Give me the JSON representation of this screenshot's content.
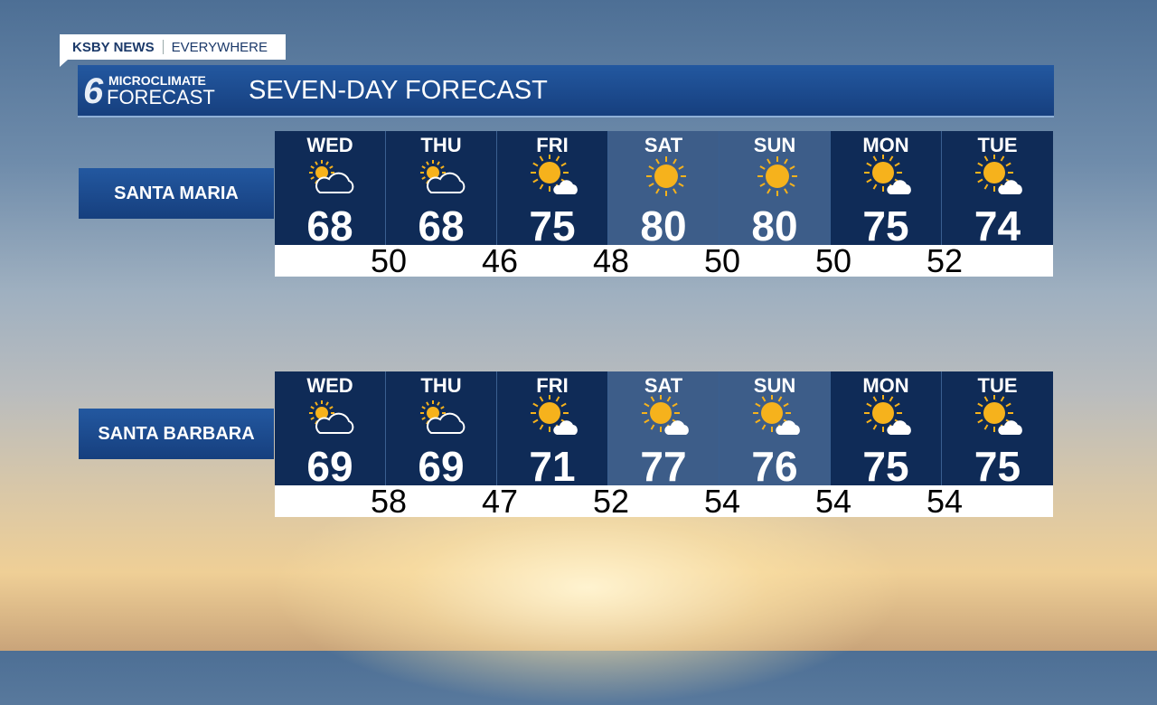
{
  "tag": {
    "brand": "KSBY NEWS",
    "slogan": "EVERYWHERE"
  },
  "banner": {
    "logo_text": "MICROCLIMATE FORECAST",
    "logo_top": "MICROCLIMATE",
    "logo_bottom": "FORECAST",
    "logo_num": "6",
    "title": "SEVEN-DAY FORECAST"
  },
  "colors": {
    "weekday": "#0f2b57",
    "weekend": "#3d5d89",
    "sun": "#f6b21c"
  },
  "locations": [
    {
      "name": "SANTA MARIA",
      "days": [
        {
          "day": "WED",
          "icon": "partly-cloudy-icon",
          "hi": "68",
          "weekend": false
        },
        {
          "day": "THU",
          "icon": "partly-cloudy-icon",
          "hi": "68",
          "weekend": false
        },
        {
          "day": "FRI",
          "icon": "mostly-sunny-icon",
          "hi": "75",
          "weekend": false
        },
        {
          "day": "SAT",
          "icon": "sunny-icon",
          "hi": "80",
          "weekend": true
        },
        {
          "day": "SUN",
          "icon": "sunny-icon",
          "hi": "80",
          "weekend": true
        },
        {
          "day": "MON",
          "icon": "mostly-sunny-icon",
          "hi": "75",
          "weekend": false
        },
        {
          "day": "TUE",
          "icon": "mostly-sunny-icon",
          "hi": "74",
          "weekend": false
        }
      ],
      "lows": [
        "50",
        "46",
        "48",
        "50",
        "50",
        "52"
      ]
    },
    {
      "name": "SANTA BARBARA",
      "days": [
        {
          "day": "WED",
          "icon": "partly-cloudy-icon",
          "hi": "69",
          "weekend": false
        },
        {
          "day": "THU",
          "icon": "partly-cloudy-icon",
          "hi": "69",
          "weekend": false
        },
        {
          "day": "FRI",
          "icon": "mostly-sunny-icon",
          "hi": "71",
          "weekend": false
        },
        {
          "day": "SAT",
          "icon": "mostly-sunny-icon",
          "hi": "77",
          "weekend": true
        },
        {
          "day": "SUN",
          "icon": "mostly-sunny-icon",
          "hi": "76",
          "weekend": true
        },
        {
          "day": "MON",
          "icon": "mostly-sunny-icon",
          "hi": "75",
          "weekend": false
        },
        {
          "day": "TUE",
          "icon": "mostly-sunny-icon",
          "hi": "75",
          "weekend": false
        }
      ],
      "lows": [
        "58",
        "47",
        "52",
        "54",
        "54",
        "54"
      ]
    }
  ]
}
